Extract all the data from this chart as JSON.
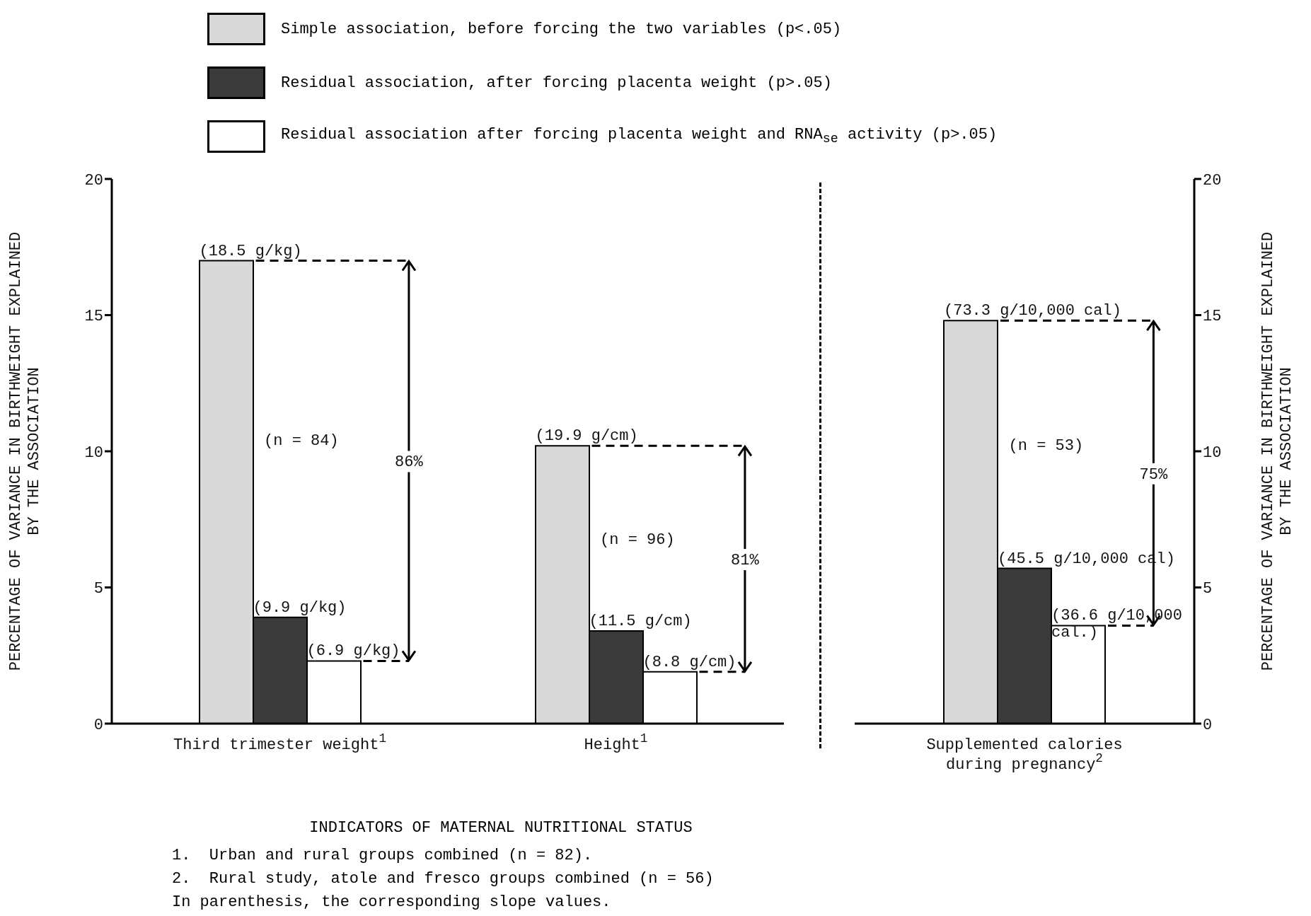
{
  "chart_data": [
    {
      "type": "bar",
      "xlabel": "INDICATORS OF MATERNAL NUTRITIONAL STATUS",
      "ylabel": "PERCENTAGE OF VARIANCE IN BIRTHWEIGHT EXPLAINED\nBY THE ASSOCIATION",
      "categories": [
        "Third trimester weight$^{1}$",
        "Height$^{1}$"
      ],
      "ylim": [
        0,
        20
      ],
      "yticks": [
        0,
        5,
        10,
        15,
        20
      ],
      "legend": "top",
      "grid": false,
      "series": [
        {
          "name": "Simple association, before forcing the two variables (p<.05)",
          "color": "#d9d9d9",
          "values": [
            17.0,
            10.2
          ]
        },
        {
          "name": "Residual association, after forcing placenta weight (p>.05)",
          "color": "#3a3a3a",
          "values": [
            3.9,
            3.4
          ]
        },
        {
          "name": "Residual association after forcing placenta weight and RNA$_{se}$ activity (p>.05)",
          "color": "#ffffff",
          "values": [
            2.3,
            1.9
          ]
        }
      ],
      "annotations": [
        "(18.5 g/kg)",
        "(9.9 g/kg)",
        "(6.9 g/kg)",
        "(19.9 g/cm)",
        "(11.5 g/cm)",
        "(8.8 g/cm)",
        "(n = 84)",
        "86%",
        "(n = 96)",
        "81%",
        "1.  Urban and rural groups combined (n = 82).",
        "2.  Rural study, atole and fresco groups combined (n = 56)",
        "In parenthesis, the corresponding slope values."
      ]
    },
    {
      "type": "bar",
      "y2label": "PERCENTAGE OF VARIANCE IN BIRTHWEIGHT EXPLAINED\nBY THE ASSOCIATION",
      "categories": [
        "Supplemented calories during pregnancy$^{2}$"
      ],
      "ylim": [
        0,
        20
      ],
      "yticks": [
        0,
        5,
        10,
        15,
        20
      ],
      "grid": false,
      "series": [
        {
          "color": "#d9d9d9",
          "values": [
            14.8
          ]
        },
        {
          "color": "#3a3a3a",
          "values": [
            5.7
          ]
        },
        {
          "color": "#ffffff",
          "values": [
            3.6
          ]
        }
      ],
      "annotations": [
        "(73.3 g/10,000 cal)",
        "(45.5 g/10,000 cal)",
        "(36.6 g/10,000\ncal.)",
        "(n = 53)",
        "75%"
      ]
    }
  ]
}
